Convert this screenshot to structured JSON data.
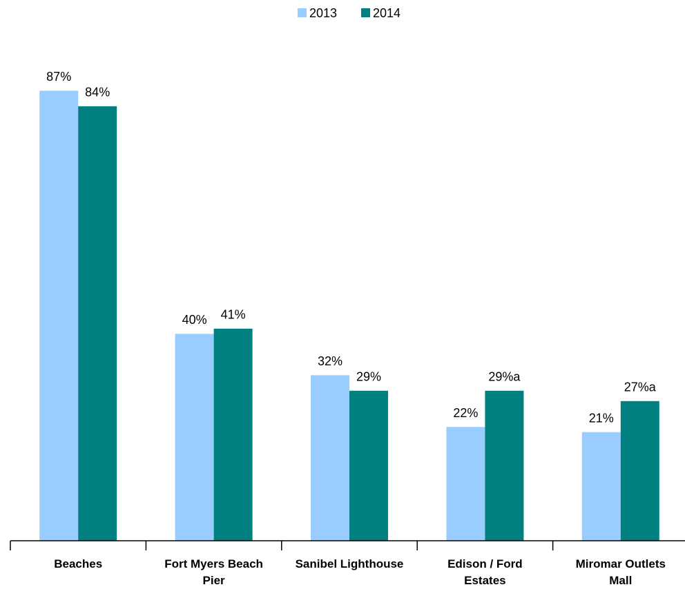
{
  "chart_data": {
    "type": "bar",
    "categories": [
      "Beaches",
      "Fort Myers Beach Pier",
      "Sanibel Lighthouse",
      "Edison / Ford Estates",
      "Miromar Outlets Mall"
    ],
    "series": [
      {
        "name": "2013",
        "color": "#99ccff",
        "values": [
          87,
          40,
          32,
          22,
          21
        ],
        "value_labels": [
          "87%",
          "40%",
          "32%",
          "22%",
          "21%"
        ]
      },
      {
        "name": "2014",
        "color": "#008080",
        "values": [
          84,
          41,
          29,
          29,
          27
        ],
        "value_labels": [
          "84%",
          "41%",
          "29%",
          "29%a",
          "27%a"
        ]
      }
    ],
    "ylim": [
      0,
      100
    ],
    "legend": "top"
  }
}
